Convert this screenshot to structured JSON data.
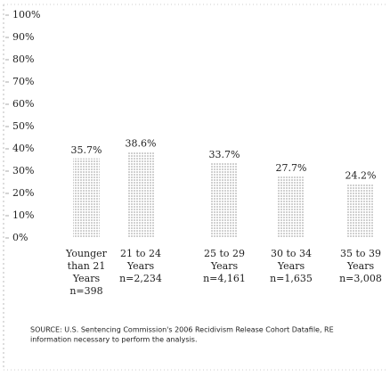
{
  "chart_data": {
    "type": "bar",
    "categories": [
      [
        "Younger",
        "than 21",
        "Years",
        "n=398"
      ],
      [
        "21 to 24",
        "Years",
        "n=2,234"
      ],
      [
        "25 to 29",
        "Years",
        "n=4,161"
      ],
      [
        "30 to 34",
        "Years",
        "n=1,635"
      ],
      [
        "35 to 39",
        "Years",
        "n=3,008"
      ]
    ],
    "values": [
      35.7,
      38.6,
      33.7,
      27.7,
      24.2
    ],
    "value_labels": [
      "35.7%",
      "38.6%",
      "33.7%",
      "27.7%",
      "24.2%"
    ],
    "color": "#9a9a9a",
    "ylim": [
      0,
      100
    ],
    "yticks": [
      {
        "value": 0,
        "label": "0%"
      },
      {
        "value": 10,
        "label": "10%"
      },
      {
        "value": 20,
        "label": "20%"
      },
      {
        "value": 30,
        "label": "30%"
      },
      {
        "value": 40,
        "label": "40%"
      },
      {
        "value": 50,
        "label": "50%"
      },
      {
        "value": 60,
        "label": "60%"
      },
      {
        "value": 70,
        "label": "70%"
      },
      {
        "value": 80,
        "label": "80%"
      },
      {
        "value": 90,
        "label": "90%"
      },
      {
        "value": 100,
        "label": "100%"
      }
    ],
    "source": [
      "SOURCE: U.S. Sentencing Commission's 2006 Recidivism Release Cohort Datafile, RE",
      "information necessary to perform the analysis."
    ]
  }
}
